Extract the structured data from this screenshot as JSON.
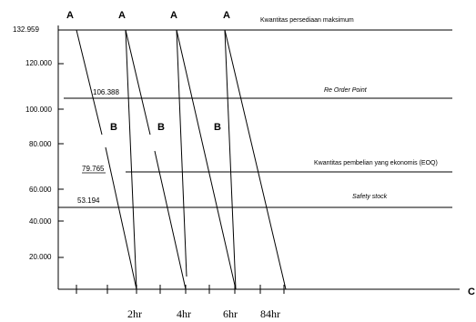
{
  "chart_data": {
    "type": "line",
    "y_ticks": [
      "132.959",
      "120.000",
      "100.000",
      "80.000",
      "60.000",
      "40.000",
      "20.000"
    ],
    "x_tick_labels": [
      "2hr",
      "4hr",
      "6hr",
      "84hr"
    ],
    "x_axis_end_label": "C",
    "horizontal_lines": [
      {
        "label": "Kwantitas persediaan maksimum",
        "value_label": "",
        "italic": false
      },
      {
        "label": "Re Order Point",
        "value_label": "106.388",
        "italic": true
      },
      {
        "label": "Kwantitas pembelian yang ekonomis (EOQ)",
        "value_label": "79.765",
        "italic": false
      },
      {
        "label": "Safety stock",
        "value_label": "53.194",
        "italic": true
      }
    ],
    "top_point_labels": [
      "A",
      "A",
      "A",
      "A"
    ],
    "mid_point_labels": [
      "B",
      "B",
      "B"
    ]
  }
}
